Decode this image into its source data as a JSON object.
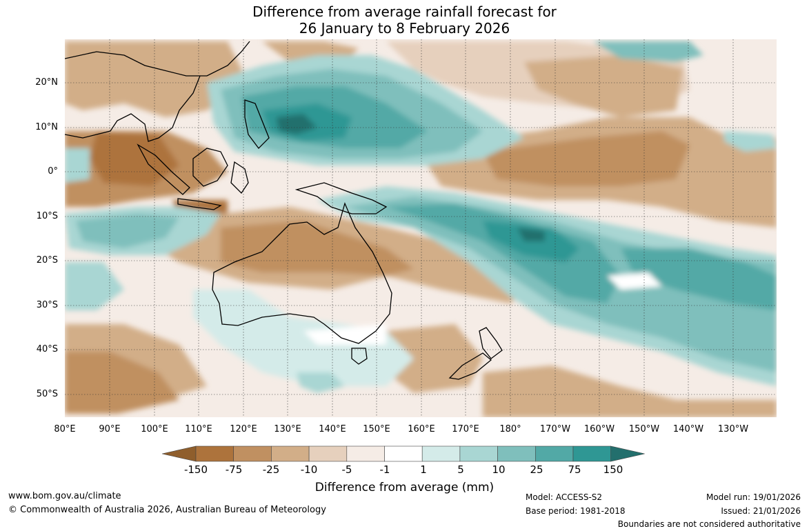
{
  "title_line1": "Difference from average rainfall forecast for",
  "title_line2": "26 January to 8 February 2026",
  "lat_labels": [
    "20°N",
    "10°N",
    "0°",
    "10°S",
    "20°S",
    "30°S",
    "40°S",
    "50°S"
  ],
  "lon_labels": [
    "80°E",
    "90°E",
    "100°E",
    "110°E",
    "120°E",
    "130°E",
    "140°E",
    "150°E",
    "160°E",
    "170°E",
    "180°",
    "170°W",
    "160°W",
    "150°W",
    "140°W",
    "130°W"
  ],
  "colorbar": {
    "labels": [
      "-150",
      "-75",
      "-25",
      "-10",
      "-5",
      "-1",
      "1",
      "5",
      "10",
      "25",
      "75",
      "150"
    ],
    "colors": [
      "#8f5e2c",
      "#ad733c",
      "#c09061",
      "#d2ae88",
      "#e6d0bd",
      "#f5ece6",
      "#ffffff",
      "#d4ebe9",
      "#a9d6d3",
      "#7fbfbc",
      "#52a9a6",
      "#2f9794",
      "#236f6d"
    ],
    "title": "Difference from average (mm)"
  },
  "footer": {
    "website": "www.bom.gov.au/climate",
    "copyright": "© Commonwealth of Australia 2026, Australian Bureau of Meteorology",
    "model": "Model: ACCESS-S2",
    "base_period": "Base period: 1981-2018",
    "model_run": "Model run: 19/01/2026",
    "issued": "Issued: 21/01/2026",
    "disclaimer": "Boundaries are not considered authoritative"
  }
}
